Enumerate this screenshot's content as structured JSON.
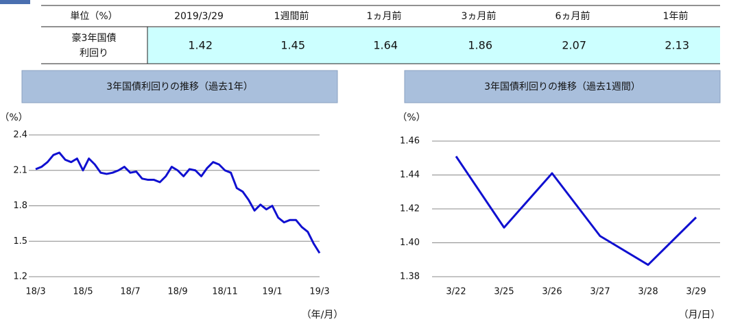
{
  "table": {
    "header": [
      "単位（%）",
      "2019/3/29",
      "1週間前",
      "1ヵ月前",
      "3ヵ月前",
      "6ヵ月前",
      "1年前"
    ],
    "rows": [
      {
        "label": [
          "豪3年国債",
          "利回り"
        ],
        "values": [
          1.42,
          1.45,
          1.64,
          1.86,
          2.07,
          2.13
        ]
      }
    ]
  },
  "chart_data": [
    {
      "type": "line",
      "title": "3年国債利回りの推移（過去1年）",
      "y_label": "（%）",
      "x_label": "（年/月）",
      "color": "#1010d0",
      "categories": [
        "18/3",
        null,
        null,
        null,
        null,
        null,
        null,
        null,
        "18/5",
        null,
        null,
        null,
        null,
        null,
        null,
        null,
        "18/7",
        null,
        null,
        null,
        null,
        null,
        null,
        null,
        "18/9",
        null,
        null,
        null,
        null,
        null,
        null,
        null,
        "18/11",
        null,
        null,
        null,
        null,
        null,
        null,
        null,
        "19/1",
        null,
        null,
        null,
        null,
        null,
        null,
        null,
        "19/3"
      ],
      "values": [
        2.11,
        2.13,
        2.17,
        2.23,
        2.25,
        2.19,
        2.17,
        2.2,
        2.1,
        2.2,
        2.15,
        2.08,
        2.07,
        2.08,
        2.1,
        2.13,
        2.08,
        2.09,
        2.03,
        2.02,
        2.02,
        2.0,
        2.05,
        2.13,
        2.1,
        2.05,
        2.11,
        2.1,
        2.05,
        2.12,
        2.17,
        2.15,
        2.1,
        2.08,
        1.95,
        1.92,
        1.85,
        1.76,
        1.81,
        1.77,
        1.8,
        1.7,
        1.66,
        1.68,
        1.68,
        1.62,
        1.58,
        1.48,
        1.4
      ],
      "ylim": [
        1.2,
        2.4
      ],
      "yticks": [
        1.2,
        1.5,
        1.8,
        2.1,
        2.4
      ],
      "grid": true
    },
    {
      "type": "line",
      "title": "3年国債利回りの推移（過去1週間）",
      "y_label": "（%）",
      "x_label": "（月/日）",
      "color": "#1010d0",
      "categories": [
        "3/22",
        "3/25",
        "3/26",
        "3/27",
        "3/28",
        "3/29"
      ],
      "values": [
        1.451,
        1.409,
        1.441,
        1.404,
        1.387,
        1.415
      ],
      "ylim": [
        1.38,
        1.46
      ],
      "yticks": [
        1.38,
        {
          "value": 1.4,
          "label": "1.40"
        },
        1.42,
        1.44,
        1.46
      ],
      "grid": true
    }
  ]
}
